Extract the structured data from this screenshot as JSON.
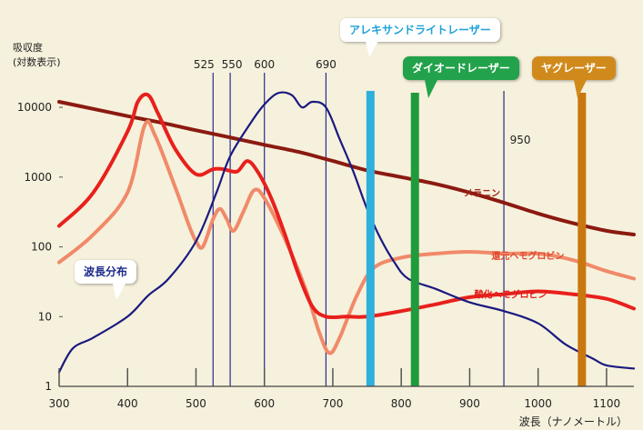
{
  "y_title_line1": "吸収度",
  "y_title_line2": "(対数表示)",
  "x_title": "波長（ナノメートル）",
  "callouts": {
    "alexandrite": "アレキサンドライトレーザー",
    "diode": "ダイオードレーザー",
    "yag": "ヤグレーザー",
    "spectrum": "波長分布"
  },
  "colors": {
    "background": "#f6f1dc",
    "melanin": "#8b1a10",
    "reduced_hemoglobin": "#f08a6a",
    "oxy_hemoglobin": "#e8201c",
    "wavelength_distribution": "#1a1a80",
    "alexandrite": "#2eb0dc",
    "diode": "#1f9b3c",
    "yag": "#c9780f",
    "guide_line": "#2a2a8a"
  },
  "chart_data": {
    "type": "line",
    "x_axis": {
      "label": "波長（ナノメートル）",
      "range": [
        300,
        1140
      ],
      "ticks": [
        300,
        400,
        500,
        600,
        700,
        800,
        900,
        1000,
        1100
      ]
    },
    "y_axis": {
      "label": "吸収度 (対数表示)",
      "scale": "log",
      "range": [
        1,
        20000
      ],
      "ticks": [
        1,
        10,
        100,
        1000,
        10000
      ]
    },
    "guide_lines": [
      525,
      550,
      600,
      690,
      950
    ],
    "guide_labels": [
      {
        "x": 525,
        "text": "525"
      },
      {
        "x": 550,
        "text": "550"
      },
      {
        "x": 600,
        "text": "600"
      },
      {
        "x": 690,
        "text": "690"
      },
      {
        "x": 950,
        "text": "950"
      }
    ],
    "laser_bands": [
      {
        "name": "アレキサンドライトレーザー",
        "x": 755,
        "color": "#2eb0dc"
      },
      {
        "name": "ダイオードレーザー",
        "x": 820,
        "color": "#1f9b3c"
      },
      {
        "name": "ヤグレーザー",
        "x": 1064,
        "color": "#c9780f"
      }
    ],
    "series": [
      {
        "name": "メラニン",
        "color": "#8b1a10",
        "points": [
          [
            300,
            12000
          ],
          [
            350,
            9500
          ],
          [
            400,
            7500
          ],
          [
            450,
            6000
          ],
          [
            500,
            4700
          ],
          [
            550,
            3700
          ],
          [
            600,
            2900
          ],
          [
            650,
            2300
          ],
          [
            700,
            1700
          ],
          [
            750,
            1250
          ],
          [
            800,
            1000
          ],
          [
            850,
            800
          ],
          [
            900,
            600
          ],
          [
            950,
            430
          ],
          [
            1000,
            300
          ],
          [
            1050,
            220
          ],
          [
            1100,
            170
          ],
          [
            1140,
            150
          ]
        ]
      },
      {
        "name": "還元ヘモグロビン",
        "color": "#f08a6a",
        "points": [
          [
            300,
            60
          ],
          [
            350,
            150
          ],
          [
            400,
            600
          ],
          [
            425,
            5500
          ],
          [
            440,
            4000
          ],
          [
            470,
            700
          ],
          [
            490,
            200
          ],
          [
            500,
            120
          ],
          [
            510,
            100
          ],
          [
            525,
            250
          ],
          [
            535,
            350
          ],
          [
            545,
            250
          ],
          [
            555,
            170
          ],
          [
            570,
            330
          ],
          [
            585,
            650
          ],
          [
            600,
            500
          ],
          [
            630,
            130
          ],
          [
            660,
            25
          ],
          [
            680,
            6
          ],
          [
            695,
            3
          ],
          [
            710,
            5
          ],
          [
            735,
            20
          ],
          [
            760,
            50
          ],
          [
            800,
            70
          ],
          [
            850,
            80
          ],
          [
            900,
            85
          ],
          [
            950,
            80
          ],
          [
            1000,
            80
          ],
          [
            1050,
            65
          ],
          [
            1100,
            45
          ],
          [
            1140,
            35
          ]
        ]
      },
      {
        "name": "酸化ヘモグロビン",
        "color": "#e8201c",
        "points": [
          [
            300,
            200
          ],
          [
            350,
            600
          ],
          [
            400,
            4500
          ],
          [
            415,
            12000
          ],
          [
            430,
            15000
          ],
          [
            445,
            8000
          ],
          [
            470,
            2500
          ],
          [
            500,
            1100
          ],
          [
            525,
            1300
          ],
          [
            540,
            1300
          ],
          [
            560,
            1200
          ],
          [
            575,
            1700
          ],
          [
            590,
            1200
          ],
          [
            610,
            500
          ],
          [
            630,
            150
          ],
          [
            650,
            40
          ],
          [
            670,
            14
          ],
          [
            690,
            10
          ],
          [
            720,
            10
          ],
          [
            750,
            10
          ],
          [
            800,
            12
          ],
          [
            850,
            15
          ],
          [
            900,
            19
          ],
          [
            950,
            21
          ],
          [
            1000,
            23
          ],
          [
            1050,
            21
          ],
          [
            1100,
            18
          ],
          [
            1140,
            13
          ]
        ]
      },
      {
        "name": "波長分布",
        "color": "#1a1a80",
        "points": [
          [
            300,
            1.6
          ],
          [
            320,
            3.5
          ],
          [
            350,
            5
          ],
          [
            400,
            10
          ],
          [
            430,
            20
          ],
          [
            460,
            35
          ],
          [
            500,
            120
          ],
          [
            530,
            600
          ],
          [
            550,
            2000
          ],
          [
            580,
            6000
          ],
          [
            600,
            11000
          ],
          [
            620,
            16000
          ],
          [
            640,
            15000
          ],
          [
            655,
            10000
          ],
          [
            670,
            12000
          ],
          [
            690,
            10000
          ],
          [
            710,
            3500
          ],
          [
            730,
            1200
          ],
          [
            750,
            350
          ],
          [
            770,
            130
          ],
          [
            790,
            60
          ],
          [
            810,
            35
          ],
          [
            850,
            25
          ],
          [
            900,
            16
          ],
          [
            950,
            12
          ],
          [
            1000,
            8
          ],
          [
            1040,
            4
          ],
          [
            1080,
            2.5
          ],
          [
            1100,
            2
          ],
          [
            1140,
            1.8
          ]
        ]
      }
    ],
    "series_labels": [
      {
        "series": "メラニン",
        "x": 918,
        "y": 600
      },
      {
        "series": "還元ヘモグロビン",
        "x": 985,
        "y": 75
      },
      {
        "series": "酸化ヘモグロビン",
        "x": 960,
        "y": 21
      }
    ]
  }
}
